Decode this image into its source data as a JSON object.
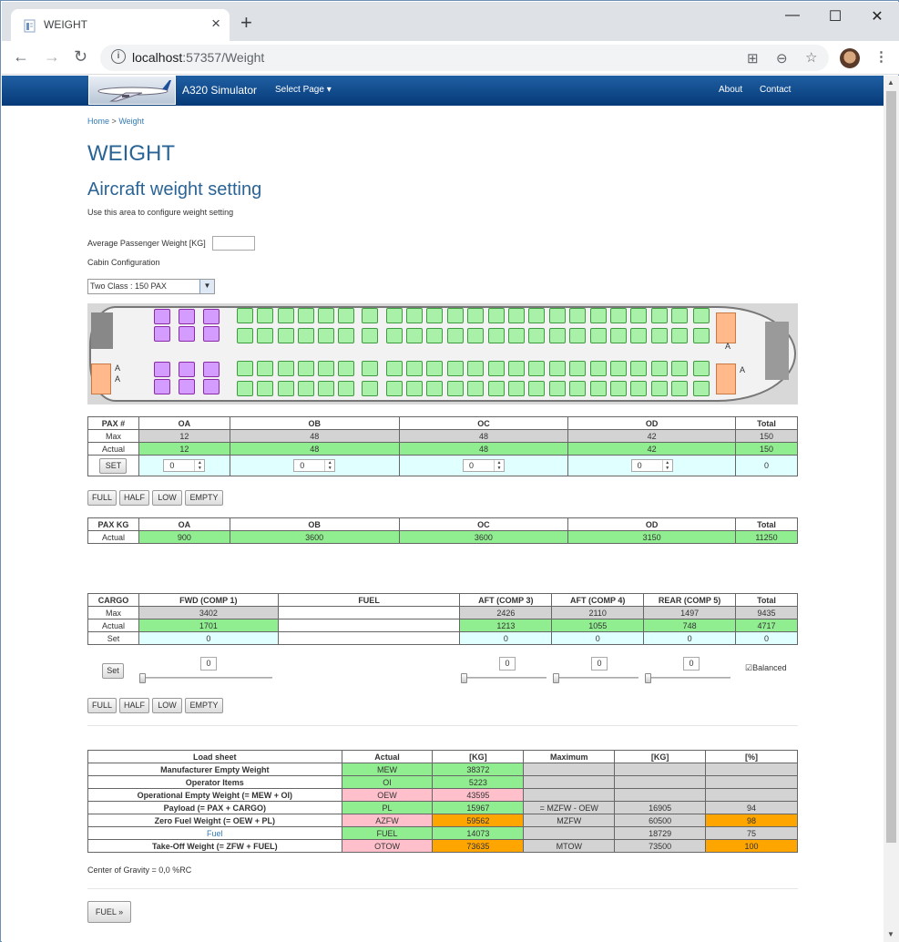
{
  "browser": {
    "tab_title": "WEIGHT",
    "url_host": "localhost",
    "url_rest": ":57357/Weight",
    "new_tab": "+",
    "controls": {
      "minimize": "—",
      "maximize": "☐",
      "close": "✕"
    }
  },
  "navbar": {
    "brand": "A320 Simulator",
    "select_page": "Select Page ▾",
    "about": "About",
    "contact": "Contact"
  },
  "breadcrumb": {
    "home": "Home",
    "sep": ">",
    "current": "Weight"
  },
  "page": {
    "title": "WEIGHT",
    "subtitle": "Aircraft weight setting",
    "intro": "Use this area to configure weight setting",
    "avg_pax_label": "Average Passenger Weight [KG]",
    "avg_pax_value": "",
    "cabin_label": "Cabin Configuration",
    "cabin_select": "Two Class : 150 PAX"
  },
  "seatmap": {
    "door_label_a": "A",
    "cabin_first_class_rows": 3,
    "cabin_economy_rows": 23,
    "colors": {
      "first": "#d49cff",
      "economy": "#a9f0a9",
      "galley": "#ffb98a"
    }
  },
  "pax_table": {
    "headers": [
      "PAX #",
      "OA",
      "OB",
      "OC",
      "OD",
      "Total"
    ],
    "max": [
      "Max",
      "12",
      "48",
      "48",
      "42",
      "150"
    ],
    "actual": [
      "Actual",
      "12",
      "48",
      "48",
      "42",
      "150"
    ],
    "set_button": "SET",
    "set_values": [
      "0",
      "0",
      "0",
      "0"
    ],
    "set_total": "0"
  },
  "pax_buttons": [
    "FULL",
    "HALF",
    "LOW",
    "EMPTY"
  ],
  "paxkg_table": {
    "headers": [
      "PAX KG",
      "OA",
      "OB",
      "OC",
      "OD",
      "Total"
    ],
    "actual": [
      "Actual",
      "900",
      "3600",
      "3600",
      "3150",
      "11250"
    ]
  },
  "cargo_table": {
    "headers": [
      "CARGO",
      "FWD (COMP 1)",
      "FUEL",
      "AFT (COMP 3)",
      "AFT (COMP 4)",
      "REAR (COMP 5)",
      "Total"
    ],
    "max": [
      "Max",
      "3402",
      "",
      "2426",
      "2110",
      "1497",
      "9435"
    ],
    "actual": [
      "Actual",
      "1701",
      "",
      "1213",
      "1055",
      "748",
      "4717"
    ],
    "set": [
      "Set",
      "0",
      "",
      "0",
      "0",
      "0",
      "0"
    ]
  },
  "cargo_controls": {
    "set_button": "Set",
    "slider_values": [
      "0",
      "0",
      "0",
      "0"
    ],
    "balanced_label": "Balanced",
    "balanced_checked": true
  },
  "cargo_buttons": [
    "FULL",
    "HALF",
    "LOW",
    "EMPTY"
  ],
  "loadsheet": {
    "headers": [
      "Load sheet",
      "Actual",
      "[KG]",
      "Maximum",
      "[KG]",
      "[%]"
    ],
    "rows": [
      [
        "Manufacturer Empty Weight",
        "MEW",
        "38372",
        "",
        "",
        ""
      ],
      [
        "Operator Items",
        "OI",
        "5223",
        "",
        "",
        ""
      ],
      [
        "Operational Empty Weight (= MEW + OI)",
        "OEW",
        "43595",
        "",
        "",
        ""
      ],
      [
        "Payload (= PAX + CARGO)",
        "PL",
        "15967",
        "= MZFW - OEW",
        "16905",
        "94"
      ],
      [
        "Zero Fuel Weight (= OEW + PL)",
        "AZFW",
        "59562",
        "MZFW",
        "60500",
        "98"
      ],
      [
        "Fuel",
        "FUEL",
        "14073",
        "",
        "18729",
        "75"
      ],
      [
        "Take-Off Weight (= ZFW + FUEL)",
        "OTOW",
        "73635",
        "MTOW",
        "73500",
        "100"
      ]
    ]
  },
  "cg_text": "Center of Gravity = 0,0 %RC",
  "fuel_button": "FUEL »"
}
